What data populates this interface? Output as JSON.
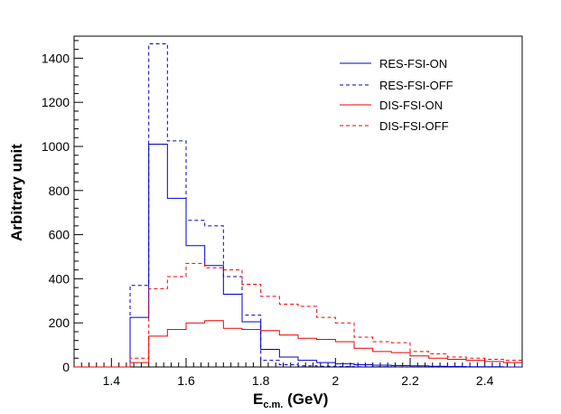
{
  "chart_data": {
    "type": "histogram",
    "title": "",
    "xlabel_main": "E",
    "xlabel_sub": "c.m.",
    "xlabel_unit": " (GeV)",
    "ylabel": "Arbitrary unit",
    "xlim": [
      1.3,
      2.5
    ],
    "ylim": [
      0,
      1500
    ],
    "x_ticks": [
      "1.4",
      "1.6",
      "1.8",
      "2",
      "2.2",
      "2.4"
    ],
    "x_tick_values": [
      1.4,
      1.6,
      1.8,
      2.0,
      2.2,
      2.4
    ],
    "y_ticks": [
      "0",
      "200",
      "400",
      "600",
      "800",
      "1000",
      "1200",
      "1400"
    ],
    "y_tick_values": [
      0,
      200,
      400,
      600,
      800,
      1000,
      1200,
      1400
    ],
    "bin_edges": [
      1.3,
      1.35,
      1.4,
      1.45,
      1.5,
      1.55,
      1.6,
      1.65,
      1.7,
      1.75,
      1.8,
      1.85,
      1.9,
      1.95,
      2.0,
      2.05,
      2.1,
      2.15,
      2.2,
      2.25,
      2.3,
      2.35,
      2.4,
      2.45,
      2.5
    ],
    "series": [
      {
        "name": "RES-FSI-ON",
        "color": "#0000cc",
        "dash": "solid",
        "values": [
          0,
          0,
          0,
          225,
          1010,
          765,
          550,
          460,
          330,
          205,
          80,
          45,
          30,
          20,
          15,
          10,
          8,
          6,
          5,
          3,
          2,
          1,
          1,
          0
        ]
      },
      {
        "name": "RES-FSI-OFF",
        "color": "#0000cc",
        "dash": "dashed",
        "values": [
          0,
          0,
          0,
          370,
          1465,
          1025,
          665,
          640,
          410,
          235,
          30,
          10,
          5,
          3,
          2,
          1,
          1,
          0,
          0,
          0,
          0,
          0,
          0,
          0
        ]
      },
      {
        "name": "DIS-FSI-ON",
        "color": "#ee0000",
        "dash": "solid",
        "values": [
          0,
          0,
          0,
          20,
          140,
          170,
          200,
          210,
          175,
          170,
          165,
          145,
          130,
          125,
          115,
          85,
          70,
          65,
          50,
          40,
          35,
          30,
          25,
          20
        ]
      },
      {
        "name": "DIS-FSI-OFF",
        "color": "#ee0000",
        "dash": "dashed",
        "values": [
          0,
          0,
          0,
          40,
          355,
          410,
          470,
          450,
          440,
          375,
          320,
          285,
          275,
          225,
          200,
          135,
          115,
          110,
          70,
          60,
          45,
          40,
          35,
          30
        ]
      }
    ],
    "legend_placement": "top-right"
  }
}
